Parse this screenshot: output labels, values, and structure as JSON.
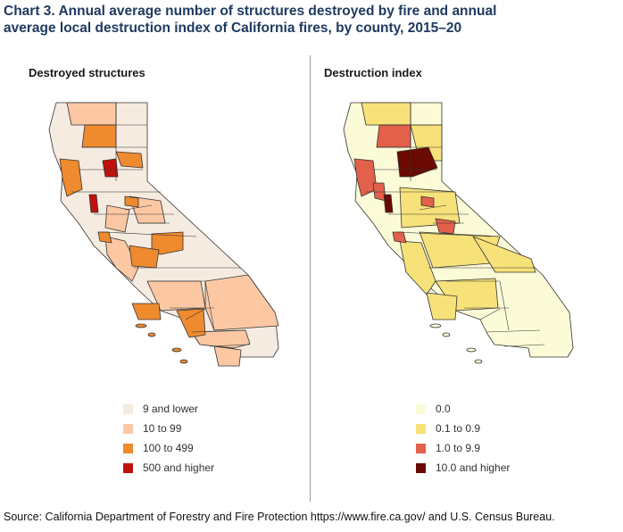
{
  "title": {
    "line1": "Chart 3. Annual average number of structures destroyed by fire and annual",
    "line2": "average local destruction index of California fires, by county, 2015–20"
  },
  "left_panel": {
    "label": "Destroyed structures",
    "legend": [
      {
        "label": "9 and lower",
        "color": "#f6ebe1"
      },
      {
        "label": "10 to 99",
        "color": "#fcc8a4"
      },
      {
        "label": "100 to 499",
        "color": "#ef8a2e"
      },
      {
        "label": "500 and higher",
        "color": "#c0120b"
      }
    ]
  },
  "right_panel": {
    "label": "Destruction index",
    "legend": [
      {
        "label": "0.0",
        "color": "#fcfbd8"
      },
      {
        "label": "0.1 to 0.9",
        "color": "#f7e27a"
      },
      {
        "label": "1.0 to 9.9",
        "color": "#e3604a"
      },
      {
        "label": "10.0 and higher",
        "color": "#6b0a02"
      }
    ]
  },
  "source": "Source: California Department of Forestry and Fire Protection https://www.fire.ca.gov/ and U.S. Census Bureau."
}
